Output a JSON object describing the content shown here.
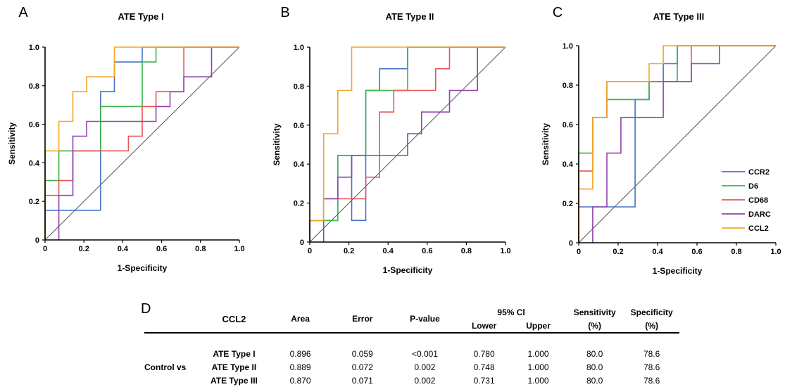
{
  "chart_data": [
    {
      "type": "line",
      "panel": "A",
      "title": "ATE Type I",
      "xlabel": "1-Specificity",
      "ylabel": "Sensitivity",
      "xlim": [
        0,
        1.0
      ],
      "ylim": [
        0,
        1.0
      ],
      "xticks": [
        "0",
        "0.2",
        "0.4",
        "0.6",
        "0.8",
        "1.0"
      ],
      "yticks": [
        "0",
        "0.2",
        "0.4",
        "0.6",
        "0.8",
        "1.0"
      ],
      "grid": false,
      "series": [
        {
          "name": "CCR2",
          "color": "#4472c4",
          "points": [
            [
              0,
              0
            ],
            [
              0,
              0.154
            ],
            [
              0.286,
              0.154
            ],
            [
              0.286,
              0.769
            ],
            [
              0.357,
              0.769
            ],
            [
              0.357,
              0.923
            ],
            [
              0.5,
              0.923
            ],
            [
              0.5,
              1
            ],
            [
              1,
              1
            ]
          ]
        },
        {
          "name": "D6",
          "color": "#3cb44b",
          "points": [
            [
              0,
              0
            ],
            [
              0,
              0.308
            ],
            [
              0.071,
              0.308
            ],
            [
              0.071,
              0.462
            ],
            [
              0.286,
              0.462
            ],
            [
              0.286,
              0.692
            ],
            [
              0.5,
              0.692
            ],
            [
              0.5,
              0.923
            ],
            [
              0.571,
              0.923
            ],
            [
              0.571,
              1
            ],
            [
              1,
              1
            ]
          ]
        },
        {
          "name": "CD68",
          "color": "#e8545a",
          "points": [
            [
              0,
              0
            ],
            [
              0,
              0.231
            ],
            [
              0.071,
              0.231
            ],
            [
              0.071,
              0.308
            ],
            [
              0.143,
              0.308
            ],
            [
              0.143,
              0.462
            ],
            [
              0.357,
              0.462
            ],
            [
              0.357,
              0.462
            ],
            [
              0.429,
              0.462
            ],
            [
              0.429,
              0.538
            ],
            [
              0.5,
              0.538
            ],
            [
              0.5,
              0.692
            ],
            [
              0.571,
              0.692
            ],
            [
              0.571,
              0.769
            ],
            [
              0.714,
              0.769
            ],
            [
              0.714,
              1
            ],
            [
              1,
              1
            ]
          ]
        },
        {
          "name": "DARC",
          "color": "#8e44ad",
          "points": [
            [
              0.071,
              0
            ],
            [
              0.071,
              0.231
            ],
            [
              0.143,
              0.231
            ],
            [
              0.143,
              0.538
            ],
            [
              0.214,
              0.538
            ],
            [
              0.214,
              0.615
            ],
            [
              0.571,
              0.615
            ],
            [
              0.571,
              0.692
            ],
            [
              0.643,
              0.692
            ],
            [
              0.643,
              0.769
            ],
            [
              0.714,
              0.769
            ],
            [
              0.714,
              0.846
            ],
            [
              0.857,
              0.846
            ],
            [
              0.857,
              1
            ],
            [
              1,
              1
            ]
          ]
        },
        {
          "name": "CCL2",
          "color": "#f5a623",
          "points": [
            [
              0,
              0
            ],
            [
              0,
              0.462
            ],
            [
              0.071,
              0.462
            ],
            [
              0.071,
              0.615
            ],
            [
              0.143,
              0.615
            ],
            [
              0.143,
              0.769
            ],
            [
              0.214,
              0.769
            ],
            [
              0.214,
              0.846
            ],
            [
              0.357,
              0.846
            ],
            [
              0.357,
              1
            ],
            [
              1,
              1
            ]
          ]
        }
      ]
    },
    {
      "type": "line",
      "panel": "B",
      "title": "ATE Type II",
      "xlabel": "1-Specificity",
      "ylabel": "Sensitivity",
      "xlim": [
        0,
        1.0
      ],
      "ylim": [
        0,
        1.0
      ],
      "xticks": [
        "0",
        "0.2",
        "0.4",
        "0.6",
        "0.8",
        "1.0"
      ],
      "yticks": [
        "0",
        "0.2",
        "0.4",
        "0.6",
        "0.8",
        "1.0"
      ],
      "grid": false,
      "series": [
        {
          "name": "CCR2",
          "color": "#4472c4",
          "points": [
            [
              0,
              0
            ],
            [
              0,
              0.111
            ],
            [
              0.143,
              0.111
            ],
            [
              0.143,
              0.444
            ],
            [
              0.214,
              0.444
            ],
            [
              0.214,
              0.111
            ],
            [
              0.286,
              0.111
            ],
            [
              0.286,
              0.778
            ],
            [
              0.357,
              0.778
            ],
            [
              0.357,
              0.889
            ],
            [
              0.5,
              0.889
            ],
            [
              0.5,
              1
            ],
            [
              1,
              1
            ]
          ]
        },
        {
          "name": "D6",
          "color": "#3cb44b",
          "points": [
            [
              0,
              0
            ],
            [
              0,
              0.111
            ],
            [
              0.143,
              0.111
            ],
            [
              0.143,
              0.444
            ],
            [
              0.214,
              0.444
            ],
            [
              0.214,
              0.444
            ],
            [
              0.286,
              0.444
            ],
            [
              0.286,
              0.778
            ],
            [
              0.5,
              0.778
            ],
            [
              0.5,
              1
            ],
            [
              1,
              1
            ]
          ]
        },
        {
          "name": "CD68",
          "color": "#e8545a",
          "points": [
            [
              0,
              0
            ],
            [
              0,
              0.111
            ],
            [
              0.071,
              0.111
            ],
            [
              0.071,
              0.222
            ],
            [
              0.286,
              0.222
            ],
            [
              0.286,
              0.333
            ],
            [
              0.357,
              0.333
            ],
            [
              0.357,
              0.667
            ],
            [
              0.429,
              0.667
            ],
            [
              0.429,
              0.778
            ],
            [
              0.643,
              0.778
            ],
            [
              0.643,
              0.889
            ],
            [
              0.714,
              0.889
            ],
            [
              0.714,
              1
            ],
            [
              1,
              1
            ]
          ]
        },
        {
          "name": "DARC",
          "color": "#8e44ad",
          "points": [
            [
              0.071,
              0
            ],
            [
              0.071,
              0.222
            ],
            [
              0.143,
              0.222
            ],
            [
              0.143,
              0.333
            ],
            [
              0.214,
              0.333
            ],
            [
              0.214,
              0.444
            ],
            [
              0.429,
              0.444
            ],
            [
              0.429,
              0.444
            ],
            [
              0.5,
              0.444
            ],
            [
              0.5,
              0.556
            ],
            [
              0.571,
              0.556
            ],
            [
              0.571,
              0.667
            ],
            [
              0.714,
              0.667
            ],
            [
              0.714,
              0.778
            ],
            [
              0.857,
              0.778
            ],
            [
              0.857,
              1
            ],
            [
              1,
              1
            ]
          ]
        },
        {
          "name": "CCL2",
          "color": "#f5a623",
          "points": [
            [
              0,
              0
            ],
            [
              0,
              0.111
            ],
            [
              0.071,
              0.111
            ],
            [
              0.071,
              0.556
            ],
            [
              0.143,
              0.556
            ],
            [
              0.143,
              0.778
            ],
            [
              0.214,
              0.778
            ],
            [
              0.214,
              1
            ],
            [
              1,
              1
            ]
          ]
        }
      ]
    },
    {
      "type": "line",
      "panel": "C",
      "title": "ATE Type III",
      "xlabel": "1-Specificity",
      "ylabel": "Sensitivity",
      "xlim": [
        0,
        1.0
      ],
      "ylim": [
        0,
        1.0
      ],
      "xticks": [
        "0",
        "0.2",
        "0.4",
        "0.6",
        "0.8",
        "1.0"
      ],
      "yticks": [
        "0",
        "0.2",
        "0.4",
        "0.6",
        "0.8",
        "1.0"
      ],
      "grid": false,
      "legend": "right",
      "series": [
        {
          "name": "CCR2",
          "color": "#4472c4",
          "points": [
            [
              0,
              0
            ],
            [
              0,
              0.182
            ],
            [
              0.286,
              0.182
            ],
            [
              0.286,
              0.727
            ],
            [
              0.357,
              0.727
            ],
            [
              0.357,
              0.818
            ],
            [
              0.429,
              0.818
            ],
            [
              0.429,
              0.909
            ],
            [
              0.5,
              0.909
            ],
            [
              0.5,
              1
            ],
            [
              1,
              1
            ]
          ]
        },
        {
          "name": "D6",
          "color": "#3cb44b",
          "points": [
            [
              0,
              0
            ],
            [
              0,
              0.455
            ],
            [
              0.071,
              0.455
            ],
            [
              0.071,
              0.636
            ],
            [
              0.143,
              0.636
            ],
            [
              0.143,
              0.727
            ],
            [
              0.357,
              0.727
            ],
            [
              0.357,
              0.818
            ],
            [
              0.5,
              0.818
            ],
            [
              0.5,
              1
            ],
            [
              1,
              1
            ]
          ]
        },
        {
          "name": "CD68",
          "color": "#e8545a",
          "points": [
            [
              0,
              0
            ],
            [
              0,
              0.364
            ],
            [
              0.071,
              0.364
            ],
            [
              0.071,
              0.636
            ],
            [
              0.143,
              0.636
            ],
            [
              0.143,
              0.818
            ],
            [
              0.571,
              0.818
            ],
            [
              0.571,
              1
            ],
            [
              1,
              1
            ]
          ]
        },
        {
          "name": "DARC",
          "color": "#8e44ad",
          "points": [
            [
              0.071,
              0
            ],
            [
              0.071,
              0.182
            ],
            [
              0.143,
              0.182
            ],
            [
              0.143,
              0.455
            ],
            [
              0.214,
              0.455
            ],
            [
              0.214,
              0.636
            ],
            [
              0.429,
              0.636
            ],
            [
              0.429,
              0.818
            ],
            [
              0.571,
              0.818
            ],
            [
              0.571,
              0.909
            ],
            [
              0.714,
              0.909
            ],
            [
              0.714,
              1
            ],
            [
              1,
              1
            ]
          ]
        },
        {
          "name": "CCL2",
          "color": "#f5a623",
          "points": [
            [
              0,
              0
            ],
            [
              0,
              0.273
            ],
            [
              0.071,
              0.273
            ],
            [
              0.071,
              0.636
            ],
            [
              0.143,
              0.636
            ],
            [
              0.143,
              0.818
            ],
            [
              0.357,
              0.818
            ],
            [
              0.357,
              0.909
            ],
            [
              0.429,
              0.909
            ],
            [
              0.429,
              1
            ],
            [
              1,
              1
            ]
          ]
        }
      ]
    }
  ],
  "table": {
    "panel": "D",
    "title": "CCL2",
    "headers": {
      "area": "Area",
      "error": "Error",
      "pvalue": "P-value",
      "ci": "95% Cl",
      "lower": "Lower",
      "upper": "Upper",
      "sensitivity": "Sensitivity",
      "sensitivity_unit": "(%)",
      "specificity": "Specificity",
      "specificity_unit": "(%)"
    },
    "group_label": "Control vs",
    "rows": [
      {
        "label": "ATE Type I",
        "area": "0.896",
        "error": "0.059",
        "pvalue": "<0.001",
        "lower": "0.780",
        "upper": "1.000",
        "sensitivity": "80.0",
        "specificity": "78.6"
      },
      {
        "label": "ATE Type II",
        "area": "0.889",
        "error": "0.072",
        "pvalue": "0.002",
        "lower": "0.748",
        "upper": "1.000",
        "sensitivity": "80.0",
        "specificity": "78.6"
      },
      {
        "label": "ATE Type III",
        "area": "0.870",
        "error": "0.071",
        "pvalue": "0.002",
        "lower": "0.731",
        "upper": "1.000",
        "sensitivity": "80.0",
        "specificity": "78.6"
      }
    ]
  }
}
